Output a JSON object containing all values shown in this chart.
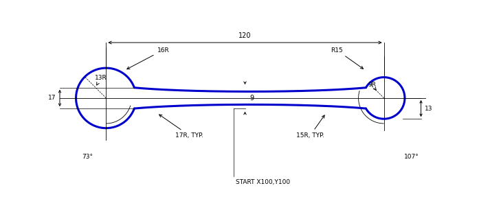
{
  "bg_color": "#ffffff",
  "drawing_color": "#0000cc",
  "dim_color": "#000000",
  "fig_width": 7.13,
  "fig_height": 3.06,
  "dpi": 100,
  "lcx": 0.0,
  "lcy": 0.0,
  "lr": 13.0,
  "rcx": 120.0,
  "rcy": 0.0,
  "rr": 9.0,
  "neck_hw": 4.5,
  "annotations": {
    "dim_120": "120",
    "dim_16R": "16R",
    "dim_R15": "R15",
    "dim_13R": "13R",
    "dim_17": "17",
    "dim_9": "9",
    "dim_17R_typ": "17R, TYP.",
    "dim_15R_typ": "15R, TYP.",
    "dim_9R": "9R",
    "dim_13": "13",
    "dim_73": "73°",
    "dim_107": "107°",
    "start_label": "START X100,Y100"
  },
  "xlim": [
    -28,
    148
  ],
  "ylim": [
    -48,
    42
  ]
}
